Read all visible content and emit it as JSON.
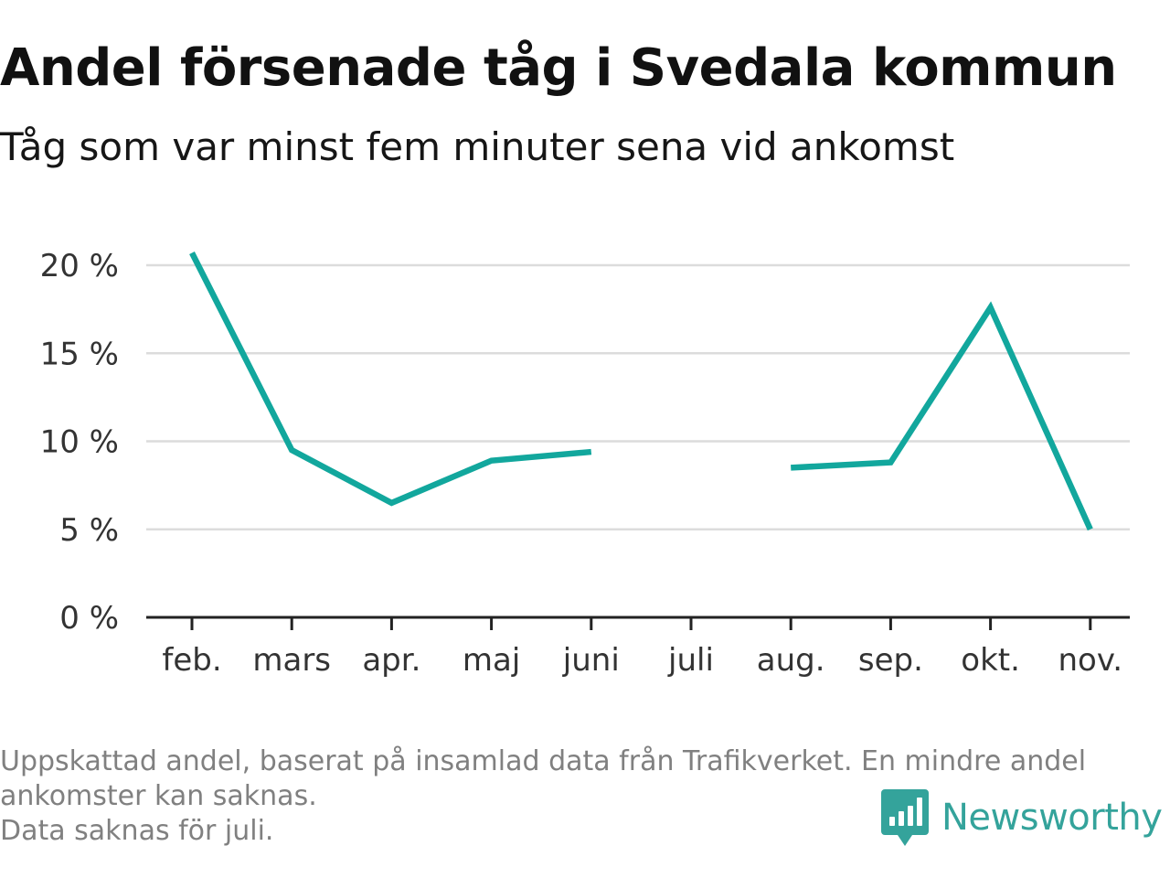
{
  "title": "Andel försenade tåg i Svedala kommun",
  "subtitle": "Tåg som var minst fem minuter sena vid ankomst",
  "chart_data": {
    "type": "line",
    "title": "Andel försenade tåg i Svedala kommun",
    "subtitle": "Tåg som var minst fem minuter sena vid ankomst",
    "xlabel": "",
    "ylabel": "",
    "categories": [
      "feb.",
      "mars",
      "apr.",
      "maj",
      "juni",
      "juli",
      "aug.",
      "sep.",
      "okt.",
      "nov."
    ],
    "yticks": [
      0,
      5,
      10,
      15,
      20
    ],
    "ytick_labels": [
      "0 %",
      "5 %",
      "10 %",
      "15 %",
      "20 %"
    ],
    "ylim": [
      0,
      20
    ],
    "grid": true,
    "legend": "none",
    "series": [
      {
        "color": "#12a79d",
        "values": [
          20.7,
          9.5,
          6.5,
          8.9,
          9.4,
          null,
          8.5,
          8.8,
          17.6,
          5.0
        ]
      }
    ]
  },
  "footnote": {
    "lines": [
      "Uppskattad andel, baserat på insamlad data från Trafikverket. En mindre andel",
      "ankomster kan saknas.",
      "Data saknas för juli."
    ]
  },
  "brand": {
    "name": "Newsworthy",
    "logo_icon": "bar-chart-speech-bubble-icon",
    "color": "#34a39b"
  },
  "colors": {
    "line": "#12a79d",
    "gridline": "#dcdcdc",
    "axis": "#222222",
    "footnote": "#808080"
  }
}
